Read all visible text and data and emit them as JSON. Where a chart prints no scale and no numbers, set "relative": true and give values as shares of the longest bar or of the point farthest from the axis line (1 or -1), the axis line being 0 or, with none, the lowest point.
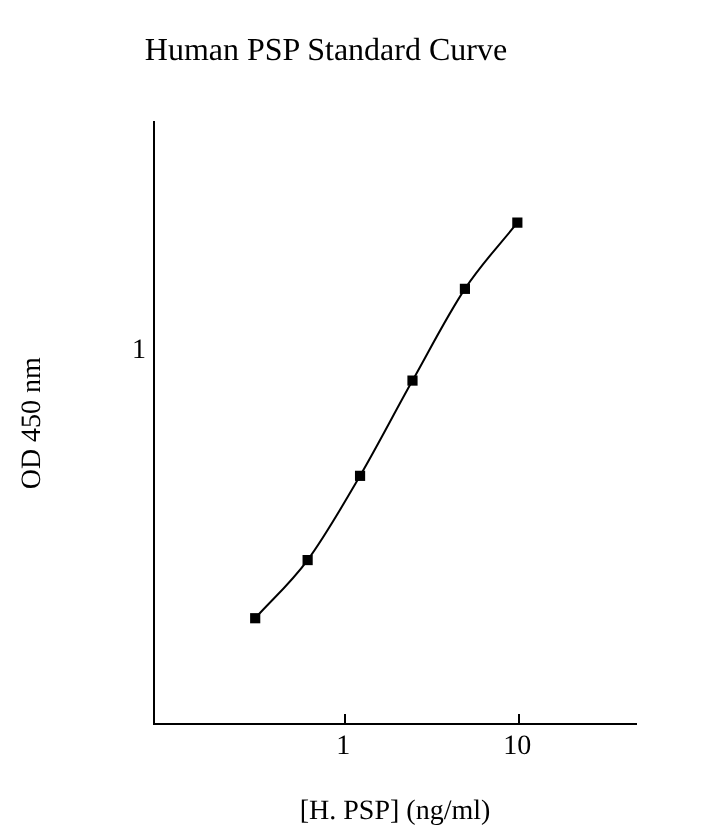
{
  "chart_data": {
    "type": "line",
    "title": "Human PSP Standard Curve",
    "xlabel": "[H. PSP] (ng/ml)",
    "ylabel": "OD 450 nm",
    "x": [
      0.3125,
      0.625,
      1.25,
      2.5,
      5,
      10
    ],
    "series": [
      {
        "color": "#000000",
        "values": [
          0.211,
          0.327,
          0.495,
          0.685,
          0.868,
          1
        ]
      }
    ],
    "relative": true,
    "annotations": [
      "1"
    ],
    "log": "x",
    "xlim": [
      0.082,
      48
    ],
    "xticks": [
      1,
      10
    ],
    "marker": "square",
    "line_style": "solid",
    "legend": false,
    "grid": false
  }
}
